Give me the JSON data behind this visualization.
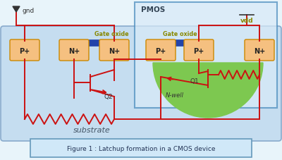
{
  "bg_color": "#e8f4fa",
  "substrate_color": "#c5ddf0",
  "nwell_color": "#7dc850",
  "pmos_box_color": "#d8eaf8",
  "pmos_border": "#4488bb",
  "gate_oxide_color": "#2244aa",
  "diffusion_box_color": "#f5c080",
  "diffusion_border": "#cc8800",
  "wire_color": "#cc1111",
  "label_color_green": "#888800",
  "caption_box_color": "#d0e8f8",
  "caption_border": "#6699bb",
  "caption_text": "Figure 1 : Latchup formation in a CMOS device",
  "title_pmos": "PMOS",
  "label_gnd": "gnd",
  "label_vdd": "vdd",
  "label_gate_oxide": "Gate oxide",
  "label_nwell": "N-well",
  "label_q1": "Q1",
  "label_q2": "Q2",
  "label_substrate": "substrate",
  "substrate_border": "#88aacc",
  "text_dark": "#334455",
  "gnd_color": "#333333",
  "vdd_color": "#888800"
}
